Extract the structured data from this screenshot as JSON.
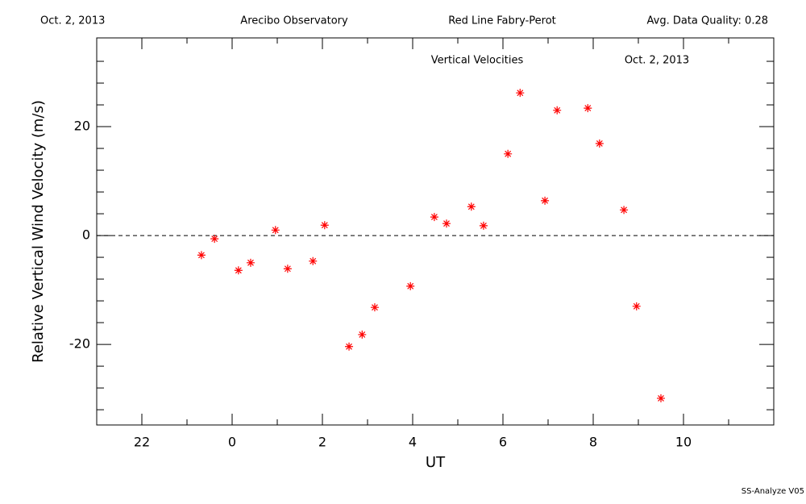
{
  "chart_data": {
    "type": "scatter",
    "header": [
      "Oct. 2, 2013",
      "Arecibo Observatory",
      "Red Line Fabry-Perot",
      "Avg. Data Quality: 0.28"
    ],
    "title": "Vertical Velocities",
    "subtitle": "Oct. 2, 2013",
    "xlabel": "UT",
    "ylabel": "Relative Vertical Wind Velocity (m/s)",
    "footer": "SS-Analyze V05",
    "xlim": [
      -3,
      12
    ],
    "ylim": [
      -34.8,
      36.3
    ],
    "xticks": [
      {
        "value": -2,
        "label": "22"
      },
      0,
      2,
      4,
      6,
      8,
      10
    ],
    "yticks": [
      -20,
      0,
      20
    ],
    "xminorticks": [
      -3,
      -1,
      1,
      3,
      5,
      7,
      9,
      11
    ],
    "yminorticks": [
      -32,
      -28,
      -24,
      -16,
      -12,
      -8,
      -4,
      4,
      8,
      12,
      16,
      24,
      28,
      32
    ],
    "hline": 0,
    "color": "#ff0000",
    "x": [
      -0.68,
      -0.39,
      0.14,
      0.41,
      0.96,
      1.23,
      1.79,
      2.05,
      2.59,
      2.88,
      3.16,
      3.95,
      4.48,
      4.75,
      5.3,
      5.57,
      6.11,
      6.38,
      6.93,
      7.2,
      7.88,
      8.14,
      8.68,
      8.96,
      9.5
    ],
    "values": [
      -3.6,
      -0.6,
      -6.4,
      -5.0,
      1.0,
      -6.1,
      -4.7,
      1.9,
      -20.4,
      -18.2,
      -13.2,
      -9.3,
      3.4,
      2.2,
      5.3,
      1.8,
      15.0,
      26.2,
      6.4,
      23.0,
      23.4,
      16.9,
      4.7,
      -13.0,
      -29.9
    ]
  }
}
